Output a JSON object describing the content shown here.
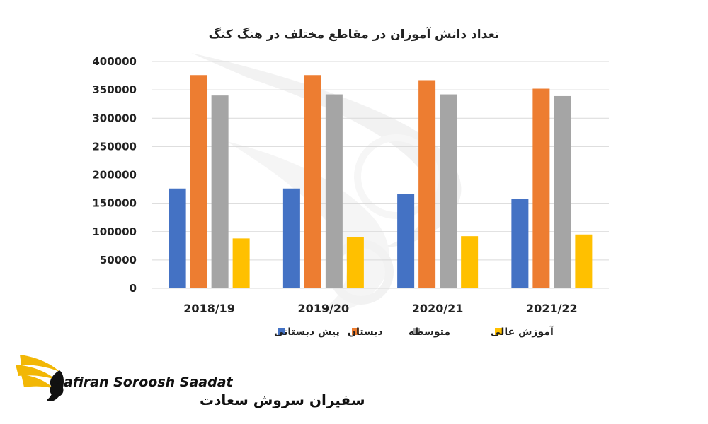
{
  "chart_data": {
    "type": "bar",
    "title": "تعداد دانش آموزان در مقاطع مختلف در هنگ کنگ",
    "categories": [
      "2018/19",
      "2019/20",
      "2020/21",
      "2021/22"
    ],
    "ylim": [
      0,
      400000
    ],
    "yticks": [
      "0",
      "50000",
      "100000",
      "150000",
      "200000",
      "250000",
      "300000",
      "350000",
      "400000"
    ],
    "grid": true,
    "legend_position": "bottom",
    "series": [
      {
        "name": "پیش دبستانی",
        "color": "#4472C4",
        "values": [
          176000,
          176000,
          166000,
          157000
        ]
      },
      {
        "name": "دبستان",
        "color": "#ED7D31",
        "values": [
          376000,
          376000,
          367000,
          352000
        ]
      },
      {
        "name": "متوسطه",
        "color": "#A5A5A5",
        "values": [
          340000,
          342000,
          342000,
          339000
        ]
      },
      {
        "name": "آموزش عالی",
        "color": "#FFC000",
        "values": [
          88000,
          90000,
          92000,
          95000
        ]
      }
    ]
  },
  "logo": {
    "name_en": "afiran Soroosh Saadat",
    "name_fa": "سفیران سروش سعادت",
    "accent_color": "#F2B705"
  }
}
